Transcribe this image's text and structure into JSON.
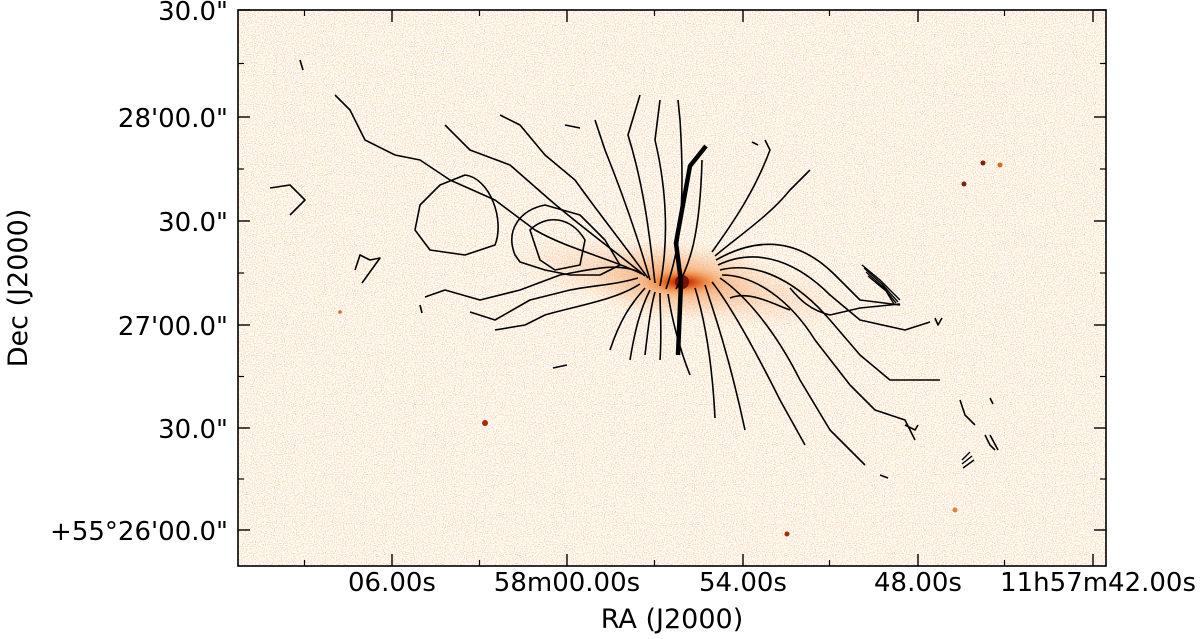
{
  "chart_data": {
    "type": "contour",
    "xlabel": "RA (J2000)",
    "ylabel": "Dec (J2000)",
    "x_ticks": [
      "06.00s",
      "58m00.00s",
      "54.00s",
      "48.00s",
      "11h57m42.00s"
    ],
    "y_ticks": [
      "30.0\"",
      "28'00.0\"",
      "30.0\"",
      "27'00.0\"",
      "30.0\"",
      "+55°26'00.0\""
    ],
    "image_colormap": "white-orange-brown",
    "contour_color": "#000000",
    "grid": false,
    "legend": "none"
  },
  "colors": {
    "background_image_light": "#f6c79a",
    "background_image_core": "#b22600",
    "contour": "#000000",
    "frame": "#000000"
  }
}
